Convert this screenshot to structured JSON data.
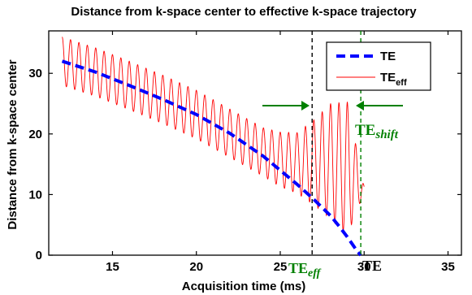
{
  "chart_data": {
    "type": "line",
    "title": "Distance from k-space center to effective k-space trajectory",
    "xlabel": "Acquisition time (ms)",
    "ylabel": "Distance from k-space center",
    "xlim": [
      11.2,
      35.8
    ],
    "ylim": [
      0,
      37
    ],
    "xticks": [
      15,
      20,
      25,
      30,
      35
    ],
    "yticks": [
      0,
      10,
      20,
      30
    ],
    "grid": false,
    "legend_position": "top-right",
    "series": [
      {
        "name": "TE",
        "style": "dashed",
        "color": "#0000ff",
        "x": [
          12,
          14,
          16,
          18,
          20,
          22,
          24,
          25,
          26,
          27,
          28,
          28.5,
          29,
          29.3,
          29.6,
          29.8
        ],
        "y": [
          32,
          30.2,
          28,
          25.7,
          23.2,
          20.1,
          16.3,
          14,
          11.7,
          9.2,
          6.5,
          4.8,
          3.0,
          1.8,
          0.6,
          0
        ]
      },
      {
        "name": "TE",
        "name_sub": "eff",
        "style": "solid",
        "color": "#ff0000",
        "oscillation_period_ms": 0.5,
        "x_range": [
          12,
          30
        ],
        "center": {
          "x": [
            12,
            14,
            16,
            18,
            20,
            22,
            24,
            25,
            26,
            27,
            28,
            29,
            30
          ],
          "y": [
            32,
            30.2,
            28,
            25.7,
            23.2,
            20.1,
            17,
            15.8,
            15.2,
            15.3,
            15.5,
            14.3,
            10.8
          ]
        },
        "amplitude": {
          "x": [
            12,
            16,
            20,
            24,
            26,
            27,
            28,
            29,
            30
          ],
          "y": [
            4,
            4,
            4,
            4,
            5,
            7,
            9.5,
            11,
            0.5
          ]
        }
      }
    ],
    "markers": [
      {
        "x": 26.9,
        "color": "#000000",
        "style": "dashed"
      },
      {
        "x": 29.8,
        "color": "#008000",
        "style": "dashed"
      }
    ],
    "annotations": {
      "te_eff": {
        "main": "TE",
        "sub": "eff"
      },
      "te": "TE",
      "te_shift": {
        "main": "TE",
        "sub": "shift"
      },
      "label_30": "30"
    }
  },
  "colors": {
    "te_line": "#0000ff",
    "te_eff_line": "#ff0000",
    "annotation_green": "#008000"
  }
}
